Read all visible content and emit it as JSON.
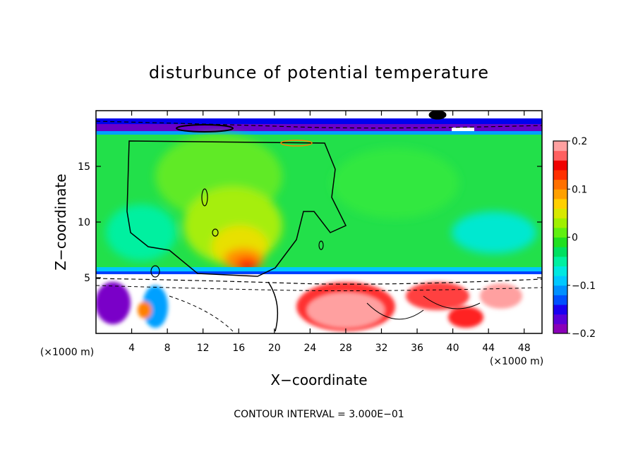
{
  "chart_data": {
    "type": "heatmap",
    "title": "disturbunce of potential temperature",
    "xlabel": "X−coordinate",
    "ylabel": "Z−coordinate",
    "x_unit_left": "(×1000 m)",
    "x_unit_right": "(×1000 m)",
    "xlim": [
      0,
      50
    ],
    "ylim": [
      0,
      20
    ],
    "x_ticks": [
      4,
      8,
      12,
      16,
      20,
      24,
      28,
      32,
      36,
      40,
      44,
      48
    ],
    "y_ticks": [
      5,
      10,
      15
    ],
    "colorbar": {
      "range": [
        -0.2,
        0.2
      ],
      "ticks": [
        "0.2",
        "0.1",
        "0",
        "−0.1",
        "−0.2"
      ],
      "tick_values": [
        0.2,
        0.1,
        0,
        -0.1,
        -0.2
      ],
      "colors": [
        "#8a00b8",
        "#5a00d8",
        "#1a00f0",
        "#0050ff",
        "#0090ff",
        "#00c8ff",
        "#00e8e0",
        "#00f0a0",
        "#00e060",
        "#20e020",
        "#60f010",
        "#a0f000",
        "#d8e800",
        "#ffd000",
        "#ffa000",
        "#ff7000",
        "#ff3000",
        "#f00000",
        "#ff6060",
        "#ffa0a0"
      ]
    },
    "annotation": "CONTOUR INTERVAL = 3.000E−01"
  }
}
